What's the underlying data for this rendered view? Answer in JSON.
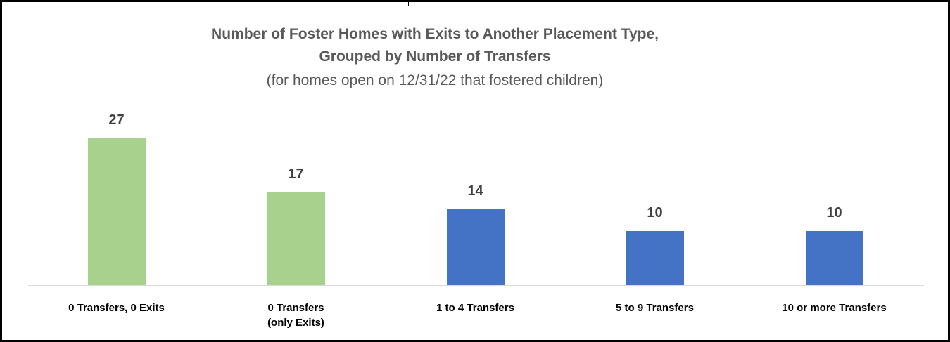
{
  "chart_data": {
    "type": "bar",
    "title": "Number of Foster Homes with Exits to Another Placement Type,\nGrouped by Number of Transfers",
    "subtitle": "(for homes open on 12/31/22 that fostered children)",
    "categories": [
      "0 Transfers, 0 Exits",
      "0 Transfers\n(only Exits)",
      "1 to 4  Transfers",
      "5 to 9 Transfers",
      "10 or more Transfers"
    ],
    "values": [
      27,
      17,
      14,
      10,
      10
    ],
    "colors": [
      "#a9d18e",
      "#a9d18e",
      "#4472c4",
      "#4472c4",
      "#4472c4"
    ]
  }
}
